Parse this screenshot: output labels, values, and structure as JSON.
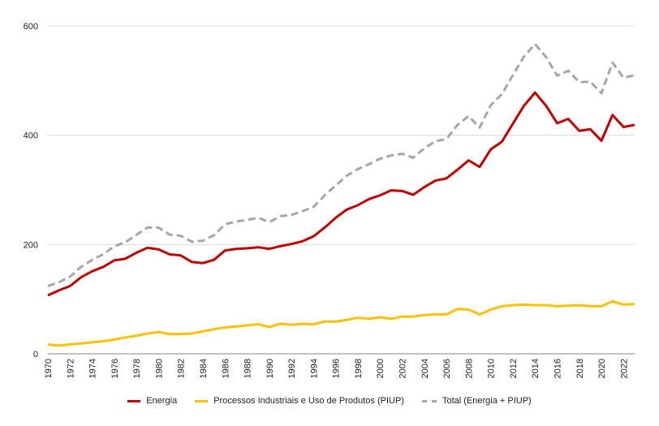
{
  "chart_data": {
    "type": "line",
    "title": "",
    "xlabel": "",
    "ylabel": "",
    "ylim": [
      0,
      600
    ],
    "xlim": [
      1970,
      2023
    ],
    "yticks": [
      0,
      200,
      400,
      600
    ],
    "xticks": [
      1970,
      1972,
      1974,
      1976,
      1978,
      1980,
      1982,
      1984,
      1986,
      1988,
      1990,
      1992,
      1994,
      1996,
      1998,
      2000,
      2002,
      2004,
      2006,
      2008,
      2010,
      2012,
      2014,
      2016,
      2018,
      2020,
      2022
    ],
    "grid": "horizontal",
    "legend_position": "bottom",
    "x": [
      1970,
      1971,
      1972,
      1973,
      1974,
      1975,
      1976,
      1977,
      1978,
      1979,
      1980,
      1981,
      1982,
      1983,
      1984,
      1985,
      1986,
      1987,
      1988,
      1989,
      1990,
      1991,
      1992,
      1993,
      1994,
      1995,
      1996,
      1997,
      1998,
      1999,
      2000,
      2001,
      2002,
      2003,
      2004,
      2005,
      2006,
      2007,
      2008,
      2009,
      2010,
      2011,
      2012,
      2013,
      2014,
      2015,
      2016,
      2017,
      2018,
      2019,
      2020,
      2021,
      2022,
      2023
    ],
    "series": [
      {
        "name": "Energia",
        "color": "#c00000",
        "style": "solid",
        "values": [
          107,
          116,
          124,
          140,
          151,
          159,
          171,
          174,
          185,
          194,
          191,
          182,
          180,
          168,
          166,
          172,
          189,
          192,
          193,
          195,
          192,
          197,
          201,
          206,
          215,
          231,
          249,
          264,
          272,
          283,
          290,
          299,
          298,
          291,
          305,
          317,
          321,
          337,
          354,
          342,
          374,
          388,
          421,
          454,
          478,
          454,
          422,
          430,
          408,
          411,
          390,
          437,
          415,
          419
        ]
      },
      {
        "name": "Processos Industriais e Uso de Produtos (PIUP)",
        "color": "#ffc000",
        "style": "solid",
        "values": [
          17,
          15,
          17,
          19,
          21,
          23,
          26,
          30,
          33,
          37,
          40,
          36,
          36,
          37,
          41,
          45,
          48,
          50,
          52,
          54,
          49,
          55,
          53,
          55,
          54,
          59,
          59,
          62,
          66,
          64,
          67,
          64,
          68,
          68,
          71,
          72,
          72,
          82,
          81,
          72,
          81,
          87,
          89,
          90,
          89,
          89,
          87,
          88,
          89,
          87,
          87,
          96,
          90,
          91
        ]
      },
      {
        "name": "Total (Energia + PIUP)",
        "color": "#a6a6a6",
        "style": "dashed",
        "values": [
          124,
          131,
          141,
          159,
          172,
          182,
          197,
          204,
          218,
          231,
          231,
          218,
          216,
          205,
          207,
          217,
          237,
          242,
          245,
          249,
          241,
          252,
          254,
          261,
          269,
          290,
          308,
          326,
          338,
          347,
          357,
          363,
          366,
          359,
          376,
          389,
          393,
          419,
          435,
          414,
          455,
          475,
          510,
          544,
          567,
          543,
          509,
          518,
          497,
          498,
          477,
          533,
          505,
          510
        ]
      }
    ]
  }
}
